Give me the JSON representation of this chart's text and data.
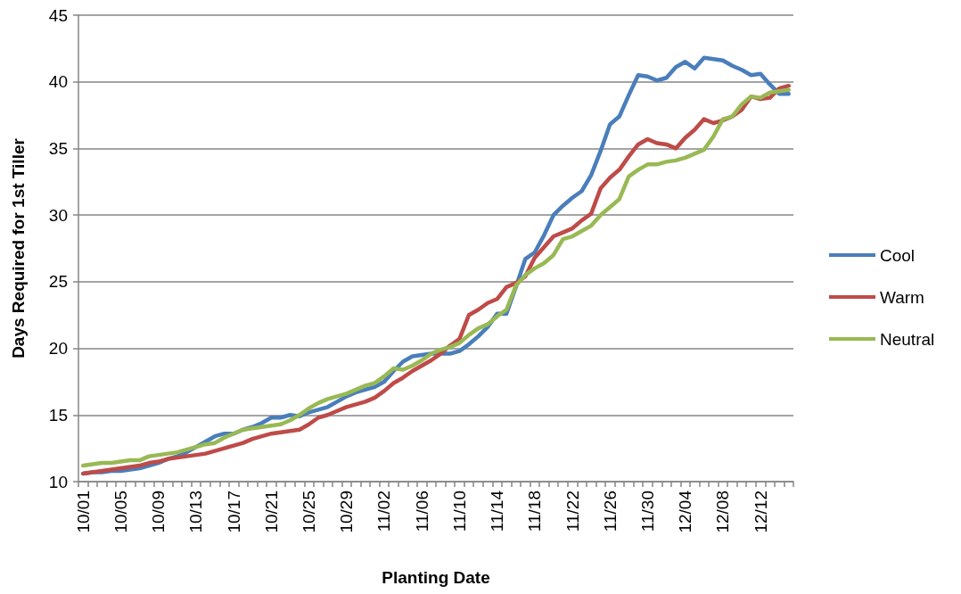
{
  "chart_data": {
    "type": "line",
    "xlabel": "Planting Date",
    "ylabel": "Days Required for 1st Tiller",
    "categories": [
      "10/01",
      null,
      null,
      null,
      "10/05",
      null,
      null,
      null,
      "10/09",
      null,
      null,
      null,
      "10/13",
      null,
      null,
      null,
      "10/17",
      null,
      null,
      null,
      "10/21",
      null,
      null,
      null,
      "10/25",
      null,
      null,
      null,
      "10/29",
      null,
      null,
      null,
      "11/02",
      null,
      null,
      null,
      "11/06",
      null,
      null,
      null,
      "11/10",
      null,
      null,
      null,
      "11/14",
      null,
      null,
      null,
      "11/18",
      null,
      null,
      null,
      "11/22",
      null,
      null,
      null,
      "11/26",
      null,
      null,
      null,
      "11/30",
      null,
      null,
      null,
      "12/04",
      null,
      null,
      null,
      "12/08",
      null,
      null,
      null,
      "12/12",
      null,
      null,
      null
    ],
    "series": [
      {
        "name": "Cool",
        "color": "#4a7ebb",
        "values": [
          10.6,
          10.7,
          10.7,
          10.8,
          10.8,
          10.9,
          11.0,
          11.2,
          11.4,
          11.7,
          11.9,
          12.2,
          12.6,
          13.0,
          13.4,
          13.6,
          13.6,
          13.9,
          14.1,
          14.4,
          14.8,
          14.8,
          15.0,
          14.9,
          15.2,
          15.4,
          15.6,
          16.0,
          16.4,
          16.7,
          16.9,
          17.1,
          17.5,
          18.3,
          19.0,
          19.4,
          19.5,
          19.6,
          19.6,
          19.6,
          19.8,
          20.3,
          20.9,
          21.6,
          22.6,
          22.6,
          24.6,
          26.7,
          27.2,
          28.5,
          30.0,
          30.7,
          31.3,
          31.8,
          33.0,
          34.8,
          36.8,
          37.4,
          39.0,
          40.5,
          40.4,
          40.1,
          40.3,
          41.1,
          41.5,
          41.0,
          41.8,
          41.7,
          41.6,
          41.2,
          40.9,
          40.5,
          40.6,
          39.8,
          39.1,
          39.1
        ]
      },
      {
        "name": "Warm",
        "color": "#be4b48",
        "values": [
          10.6,
          10.7,
          10.8,
          10.9,
          11.0,
          11.1,
          11.2,
          11.4,
          11.5,
          11.7,
          11.8,
          11.9,
          12.0,
          12.1,
          12.3,
          12.5,
          12.7,
          12.9,
          13.2,
          13.4,
          13.6,
          13.7,
          13.8,
          13.9,
          14.3,
          14.8,
          15.0,
          15.3,
          15.6,
          15.8,
          16.0,
          16.3,
          16.8,
          17.4,
          17.8,
          18.3,
          18.7,
          19.1,
          19.6,
          20.2,
          20.7,
          22.5,
          22.9,
          23.4,
          23.7,
          24.6,
          24.9,
          25.4,
          26.8,
          27.6,
          28.4,
          28.7,
          29.0,
          29.6,
          30.1,
          32.0,
          32.8,
          33.4,
          34.4,
          35.3,
          35.7,
          35.4,
          35.3,
          35.0,
          35.8,
          36.4,
          37.2,
          36.9,
          37.1,
          37.4,
          37.9,
          38.9,
          38.7,
          38.8,
          39.5,
          39.7
        ]
      },
      {
        "name": "Neutral",
        "color": "#98b954",
        "values": [
          11.2,
          11.3,
          11.4,
          11.4,
          11.5,
          11.6,
          11.6,
          11.9,
          12.0,
          12.1,
          12.2,
          12.4,
          12.6,
          12.8,
          12.9,
          13.3,
          13.6,
          13.9,
          14.0,
          14.1,
          14.2,
          14.3,
          14.6,
          15.0,
          15.5,
          15.9,
          16.2,
          16.4,
          16.6,
          16.9,
          17.2,
          17.4,
          17.9,
          18.5,
          18.4,
          18.7,
          19.1,
          19.6,
          19.9,
          20.1,
          20.4,
          21.0,
          21.5,
          21.8,
          22.4,
          22.9,
          24.7,
          25.5,
          26.0,
          26.4,
          27.0,
          28.2,
          28.4,
          28.8,
          29.2,
          30.0,
          30.6,
          31.2,
          32.9,
          33.4,
          33.8,
          33.8,
          34.0,
          34.1,
          34.3,
          34.6,
          34.9,
          35.9,
          37.2,
          37.4,
          38.3,
          38.9,
          38.8,
          39.2,
          39.3,
          39.4
        ]
      }
    ],
    "ylim": [
      10,
      45
    ],
    "yticks": [
      10,
      15,
      20,
      25,
      30,
      35,
      40,
      45
    ],
    "grid": "y",
    "legend": "right",
    "marker": "none",
    "line_style": "solid"
  }
}
